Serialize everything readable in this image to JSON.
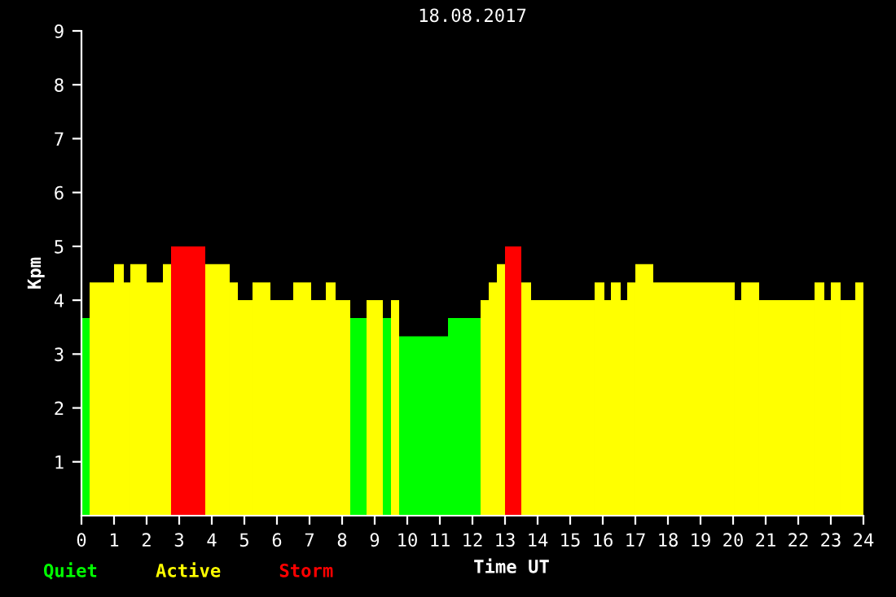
{
  "chart_data": {
    "type": "histogram",
    "title": "18.08.2017",
    "xlabel": "Time UT",
    "ylabel": "Kpm",
    "bins": [
      0,
      0.25,
      1,
      1.3,
      1.5,
      2,
      2.5,
      2.75,
      3.8,
      4.55,
      4.8,
      5.25,
      5.8,
      6.5,
      7.05,
      7.5,
      7.8,
      8.25,
      8.75,
      9.25,
      9.5,
      9.75,
      11.25,
      12.25,
      12.5,
      12.75,
      13,
      13.5,
      13.8,
      15.75,
      16.05,
      16.25,
      16.55,
      16.75,
      17,
      17.55,
      20.05,
      20.25,
      20.8,
      22.5,
      22.8,
      23,
      23.3,
      23.75,
      24
    ],
    "series": [
      {
        "name": "Quiet",
        "color": "#00ff00",
        "values": [
          3.67,
          null,
          null,
          null,
          null,
          null,
          null,
          null,
          null,
          null,
          null,
          null,
          null,
          null,
          null,
          null,
          null,
          3.67,
          null,
          3.67,
          null,
          3.33,
          3.67,
          null,
          null,
          null,
          null,
          null,
          null,
          null,
          null,
          null,
          null,
          null,
          null,
          null,
          null,
          null,
          null,
          null,
          null,
          null,
          null,
          null
        ]
      },
      {
        "name": "Active",
        "color": "#ffff00",
        "values": [
          null,
          4.33,
          4.67,
          4.33,
          4.67,
          4.33,
          4.67,
          null,
          4.67,
          4.33,
          4,
          4.33,
          4,
          4.33,
          4,
          4.33,
          4,
          null,
          4,
          null,
          4,
          null,
          null,
          4,
          4.33,
          4.67,
          null,
          4.33,
          4,
          4.33,
          4,
          4.33,
          4,
          4.33,
          4.67,
          4.33,
          4,
          4.33,
          4,
          4.33,
          4,
          4.33,
          4,
          4.33
        ]
      },
      {
        "name": "Storm",
        "color": "#ff0000",
        "values": [
          null,
          null,
          null,
          null,
          null,
          null,
          null,
          5,
          null,
          null,
          null,
          null,
          null,
          null,
          null,
          null,
          null,
          null,
          null,
          null,
          null,
          null,
          null,
          null,
          null,
          null,
          5,
          null,
          null,
          null,
          null,
          null,
          null,
          null,
          null,
          null,
          null,
          null,
          null,
          null,
          null,
          null,
          null,
          null
        ]
      }
    ],
    "xlim": [
      0,
      24
    ],
    "xticks": [
      0,
      1,
      2,
      3,
      4,
      5,
      6,
      7,
      8,
      9,
      10,
      11,
      12,
      13,
      14,
      15,
      16,
      17,
      18,
      19,
      20,
      21,
      22,
      23,
      24
    ],
    "ylim": [
      0,
      9
    ],
    "yticks": [
      {
        "value": 1,
        "label": "1"
      },
      {
        "value": 2,
        "label": "2"
      },
      {
        "value": 3,
        "label": "3"
      },
      {
        "value": 4,
        "label": "4"
      },
      {
        "value": 5,
        "label": "5"
      },
      {
        "value": 6,
        "label": "6"
      },
      {
        "value": 7,
        "label": "7"
      },
      {
        "value": 8,
        "label": "8"
      },
      {
        "value": 9,
        "label": "9"
      }
    ],
    "legend": "bottom left",
    "grid": false
  }
}
